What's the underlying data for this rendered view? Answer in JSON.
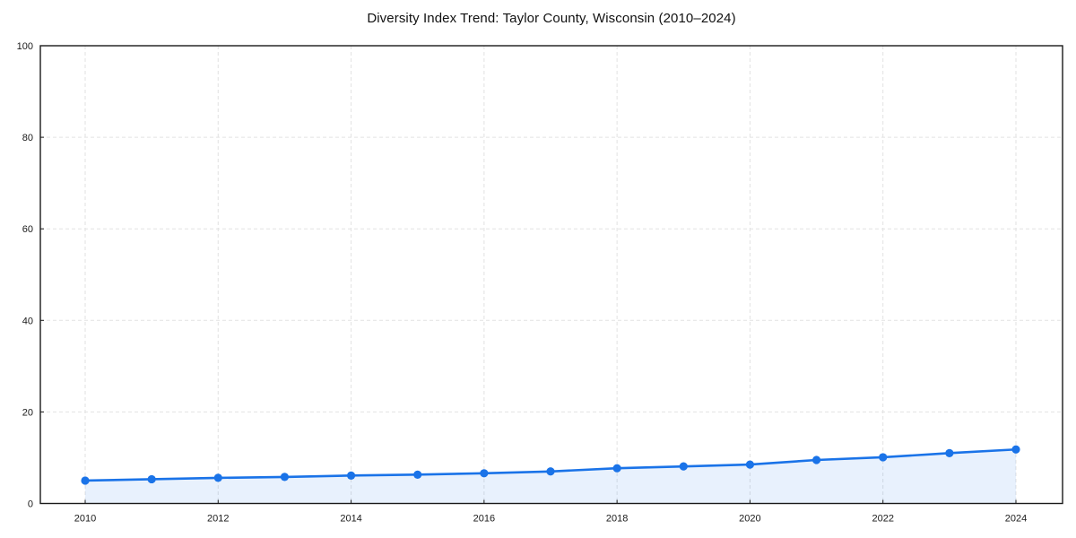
{
  "chart_data": {
    "type": "line",
    "title": "Diversity Index Trend: Taylor County, Wisconsin (2010–2024)",
    "xlabel": "",
    "ylabel": "",
    "x": [
      2010,
      2011,
      2012,
      2013,
      2014,
      2015,
      2016,
      2017,
      2018,
      2019,
      2020,
      2021,
      2022,
      2023,
      2024
    ],
    "series": [
      {
        "name": "Diversity Index",
        "values": [
          5.0,
          5.3,
          5.6,
          5.8,
          6.1,
          6.3,
          6.6,
          7.0,
          7.7,
          8.1,
          8.5,
          9.5,
          10.1,
          11.0,
          11.8
        ]
      }
    ],
    "ylim": [
      0,
      100
    ],
    "yticks": [
      0,
      20,
      40,
      60,
      80,
      100
    ],
    "xticks": [
      2010,
      2012,
      2014,
      2016,
      2018,
      2020,
      2022,
      2024
    ],
    "grid": "dashed, light gray, at labeled ticks",
    "legend": "none",
    "marker": "circle",
    "area_fill": true,
    "colors": {
      "line": "#1a73e8",
      "marker": "#1a73e8",
      "area_fill": "rgba(26,115,232,0.10)",
      "grid": "#e2e2e2",
      "axis_box": "#1a1a1a",
      "tick_text": "#1a1a1a",
      "background": "#ffffff"
    }
  }
}
